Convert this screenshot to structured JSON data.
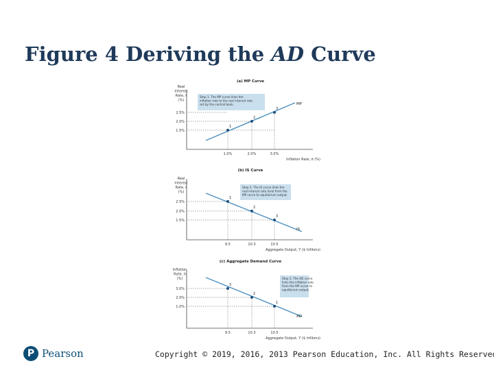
{
  "slide": {
    "title_prefix": "Figure 4 Deriving the ",
    "title_italic": "AD",
    "title_suffix": " Curve",
    "copyright": "Copyright © 2019, 2016, 2013 Pearson Education, Inc. All Rights Reserved.",
    "logo_letter": "P",
    "logo_text": "Pearson"
  },
  "panels": [
    {
      "title": "(a) MP Curve",
      "ylabel": [
        "Real",
        "Interest",
        "Rate, r",
        "(%)"
      ],
      "xlabel": "Inflation Rate, π (%)",
      "yticks": [
        "2.5%",
        "2.0%",
        "1.5%"
      ],
      "xticks": [
        "1.0%",
        "2.0%",
        "3.0%"
      ],
      "curve_label": "MP",
      "points": [
        "1",
        "2",
        "3"
      ],
      "note": [
        "Step 1. The MP curve links the",
        "inflation rate to the real interest rate",
        "set by the central bank."
      ]
    },
    {
      "title": "(b) IS Curve",
      "ylabel": [
        "Real",
        "Interest",
        "Rate, r",
        "(%)"
      ],
      "xlabel": "Aggregate Output, Y ($ trillions)",
      "yticks": [
        "2.5%",
        "2.0%",
        "1.5%"
      ],
      "xticks": [
        "9.5",
        "10.3",
        "10.5"
      ],
      "curve_label": "IS",
      "points": [
        "1",
        "2",
        "3"
      ],
      "note": [
        "Step 2. The IS curve links the",
        "real interest rate level from the",
        "MP curve to equilibrium output."
      ]
    },
    {
      "title": "(c) Aggregate Demand Curve",
      "ylabel": [
        "Inflation",
        "Rate, π",
        "(%)"
      ],
      "xlabel": "Aggregate Output, Y ($ trillions)",
      "yticks": [
        "3.0%",
        "2.0%",
        "1.0%"
      ],
      "xticks": [
        "9.5",
        "10.3",
        "10.5"
      ],
      "curve_label": "AD",
      "points": [
        "3",
        "2",
        "1"
      ],
      "note": [
        "Step 3. The AD curve",
        "links the inflation rate",
        "from the MP curve to",
        "equilibrium output."
      ]
    }
  ]
}
